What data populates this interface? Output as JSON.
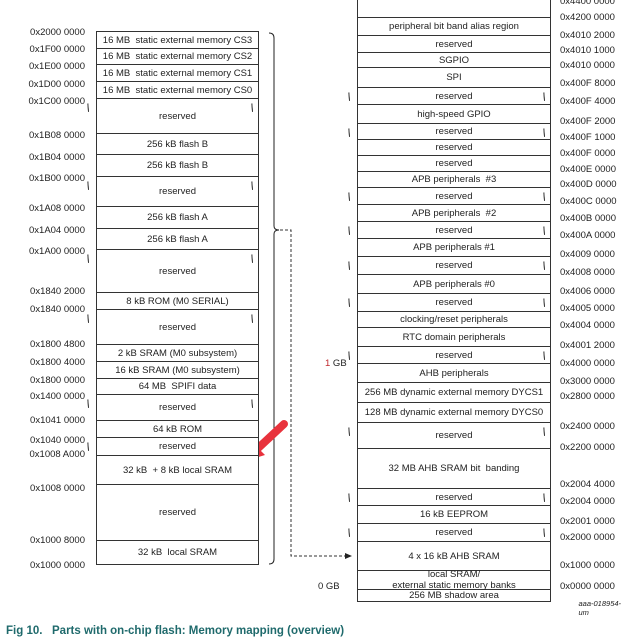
{
  "left_map": {
    "rows": [
      {
        "label": "16 MB  static external memory CS3"
      },
      {
        "label": "16 MB  static external memory CS2"
      },
      {
        "label": "16 MB  static external memory CS1"
      },
      {
        "label": "16 MB  static external memory CS0"
      },
      {
        "label": "reserved",
        "break": true
      },
      {
        "label": "256 kB flash B"
      },
      {
        "label": "256 kB flash B"
      },
      {
        "label": "reserved",
        "break": true
      },
      {
        "label": "256 kB flash A"
      },
      {
        "label": "256 kB flash A"
      },
      {
        "label": "reserved",
        "break": true
      },
      {
        "label": "8 kB ROM (M0 SERIAL)"
      },
      {
        "label": "reserved",
        "break": true
      },
      {
        "label": "2 kB SRAM (M0 subsystem)"
      },
      {
        "label": "16 kB SRAM (M0 subsystem)"
      },
      {
        "label": "64 MB  SPIFI data"
      },
      {
        "label": "reserved",
        "break": true
      },
      {
        "label": "64 kB ROM"
      },
      {
        "label": "reserved",
        "break": "left"
      },
      {
        "label": "32 kB  + 8 kB local SRAM"
      },
      {
        "label": "reserved"
      },
      {
        "label": "32 kB  local SRAM"
      }
    ],
    "addresses": [
      "0x2000 0000",
      "0x1F00 0000",
      "0x1E00 0000",
      "0x1D00 0000",
      "0x1C00 0000",
      "0x1B08 0000",
      "0x1B04 0000",
      "0x1B00 0000",
      "0x1A08 0000",
      "0x1A04 0000",
      "0x1A00 0000",
      "0x1840 2000",
      "0x1840 0000",
      "0x1800 4800",
      "0x1800 4000",
      "0x1800 0000",
      "0x1400 0000",
      "0x1041 0000",
      "0x1040 0000",
      "0x1008 A000",
      "0x1008 0000",
      "0x1000 8000",
      "0x1000 0000"
    ]
  },
  "right_map": {
    "rows": [
      {
        "label": ""
      },
      {
        "label": "peripheral bit band alias region"
      },
      {
        "label": "reserved"
      },
      {
        "label": "SGPIO"
      },
      {
        "label": "SPI"
      },
      {
        "label": "reserved",
        "break": true
      },
      {
        "label": "high-speed GPIO"
      },
      {
        "label": "reserved",
        "break": true
      },
      {
        "label": "reserved"
      },
      {
        "label": "reserved"
      },
      {
        "label": "APB peripherals  #3"
      },
      {
        "label": "reserved",
        "break": true
      },
      {
        "label": "APB peripherals  #2"
      },
      {
        "label": "reserved",
        "break": true
      },
      {
        "label": "APB peripherals #1"
      },
      {
        "label": "reserved",
        "break": true
      },
      {
        "label": "APB peripherals #0"
      },
      {
        "label": "reserved",
        "break": true
      },
      {
        "label": "clocking/reset peripherals"
      },
      {
        "label": "RTC domain peripherals"
      },
      {
        "label": "reserved",
        "break": true
      },
      {
        "label": "AHB peripherals"
      },
      {
        "label": "256 MB dynamic external memory DYCS1"
      },
      {
        "label": "128 MB dynamic external memory DYCS0"
      },
      {
        "label": "reserved",
        "break": true
      },
      {
        "label": "32 MB AHB SRAM bit  banding"
      },
      {
        "label": "reserved",
        "break": true
      },
      {
        "label": "16 kB EEPROM"
      },
      {
        "label": "reserved",
        "break": true
      },
      {
        "label": "4 x 16 kB AHB SRAM"
      },
      {
        "label": "local SRAM/\nexternal static memory banks"
      },
      {
        "label": "256 MB shadow area"
      }
    ],
    "addresses": [
      "0x4400 0000",
      "0x4200 0000",
      "0x4010 2000",
      "0x4010 1000",
      "0x4010 0000",
      "0x400F 8000",
      "0x400F 4000",
      "0x400F 2000",
      "0x400F 1000",
      "0x400F 0000",
      "0x400E 0000",
      "0x400D 0000",
      "0x400C 0000",
      "0x400B 0000",
      "0x400A 0000",
      "0x4009 0000",
      "0x4008 0000",
      "0x4006 0000",
      "0x4005 0000",
      "0x4004 0000",
      "0x4001 2000",
      "0x4000 0000",
      "0x3000 0000",
      "0x2800 0000",
      "0x2400 0000",
      "0x2200 0000",
      "0x2004 4000",
      "0x2004 0000",
      "0x2001 0000",
      "0x2000 0000",
      "0x1000 0000",
      "0x0000 0000"
    ]
  },
  "markers": {
    "one_gb_num": "1",
    "one_gb_unit": " GB",
    "zero_gb": "0 GB"
  },
  "colors": {
    "caption": "#1f6a6c",
    "arrow": "#e8323c",
    "one_gb": "#c0282e"
  },
  "figure_id": "aaa-018954-um",
  "caption": "Fig 10.   Parts with on-chip flash: Memory mapping (overview)"
}
